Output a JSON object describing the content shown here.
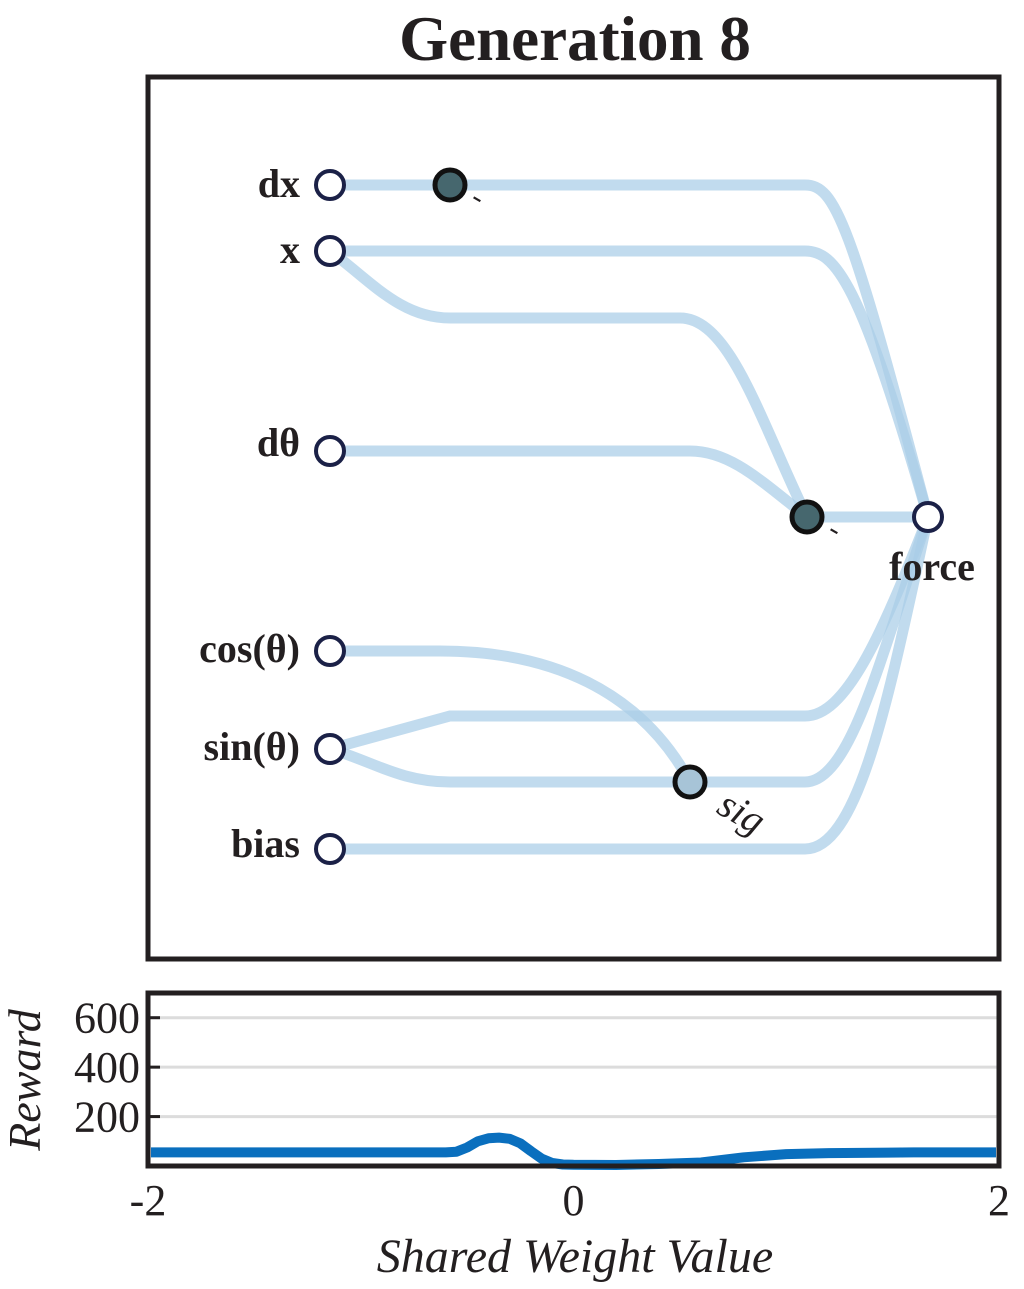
{
  "title": "Generation 8",
  "network": {
    "input_nodes": [
      "dx",
      "x",
      "dθ",
      "cos(θ)",
      "sin(θ)",
      "bias"
    ],
    "output_node": "force",
    "hidden_nodes": [
      {
        "activation": "-",
        "color": "#46676e"
      },
      {
        "activation": "-",
        "color": "#46676e"
      },
      {
        "activation": "sig",
        "color": "#a7c4d7"
      }
    ],
    "connection_color": "#a9cde8"
  },
  "chart_data": {
    "type": "line",
    "title": "",
    "xlabel": "Shared Weight Value",
    "ylabel": "Reward",
    "xlim": [
      -2,
      2
    ],
    "ylim": [
      0,
      700
    ],
    "xticks": [
      "-2",
      "0",
      "2"
    ],
    "yticks": [
      "200",
      "400",
      "600"
    ],
    "grid": true,
    "series": [
      {
        "color": "#0a6fbe",
        "x": [
          -2.0,
          -1.5,
          -1.0,
          -0.6,
          -0.55,
          -0.5,
          -0.45,
          -0.4,
          -0.35,
          -0.3,
          -0.25,
          -0.2,
          -0.15,
          -0.1,
          -0.05,
          0.0,
          0.2,
          0.4,
          0.6,
          0.8,
          1.0,
          1.2,
          1.6,
          2.0
        ],
        "y": [
          55,
          55,
          55,
          55,
          58,
          75,
          100,
          112,
          115,
          110,
          92,
          60,
          30,
          12,
          6,
          5,
          4,
          8,
          14,
          35,
          48,
          52,
          55,
          55
        ]
      }
    ]
  }
}
